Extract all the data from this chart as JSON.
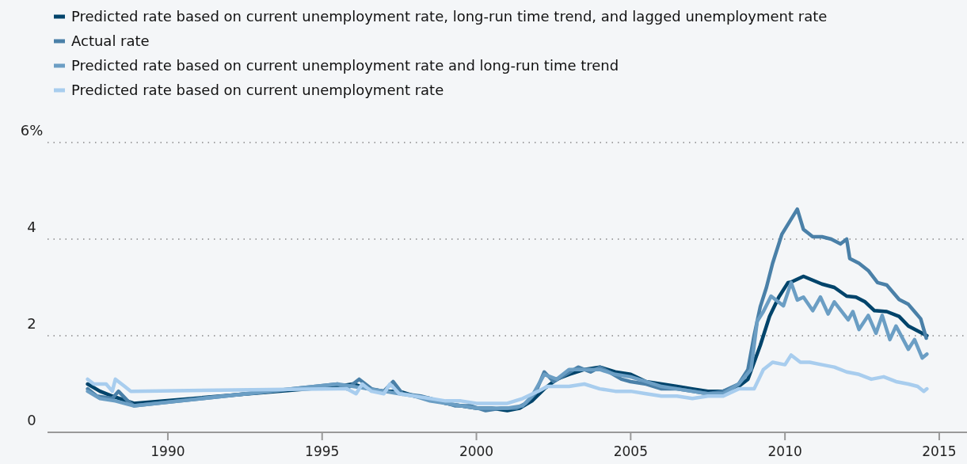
{
  "chart_data": {
    "type": "line",
    "xlim": [
      1986.1,
      2015.9
    ],
    "xticks": [
      1990,
      1995,
      2000,
      2005,
      2010,
      2015
    ],
    "ylim": [
      0,
      6
    ],
    "yticks": [
      {
        "value": 0,
        "label": "0"
      },
      {
        "value": 2,
        "label": "2"
      },
      {
        "value": 4,
        "label": "4"
      },
      {
        "value": 6,
        "label": "6%"
      }
    ],
    "grid": "y",
    "legend": "top left",
    "series": [
      {
        "name": "Predicted rate based on current unemployment rate, long-run time trend, and lagged unemployment rate",
        "color": "#00446b",
        "x": [
          1987.4,
          1987.8,
          1988.2,
          1988.9,
          1995.5,
          1996,
          1996.5,
          1997,
          1997.5,
          1998,
          1998.5,
          1999,
          1999.5,
          2000,
          2000.5,
          2001,
          2001.4,
          2001.8,
          2002.2,
          2002.6,
          2003,
          2003.5,
          2004,
          2004.5,
          2005,
          2005.5,
          2006,
          2006.5,
          2007,
          2007.5,
          2008,
          2008.5,
          2008.8,
          2009.2,
          2009.5,
          2009.8,
          2010.1,
          2010.2,
          2010.6,
          2011.2,
          2011.6,
          2012,
          2012.3,
          2012.6,
          2012.9,
          2013.3,
          2013.7,
          2014,
          2014.6
        ],
        "values": [
          1.0,
          0.85,
          0.75,
          0.6,
          0.95,
          1.0,
          0.9,
          0.85,
          0.85,
          0.75,
          0.7,
          0.6,
          0.55,
          0.5,
          0.5,
          0.45,
          0.5,
          0.65,
          0.9,
          1.1,
          1.2,
          1.3,
          1.35,
          1.25,
          1.2,
          1.05,
          1.0,
          0.95,
          0.9,
          0.85,
          0.85,
          0.95,
          1.1,
          1.8,
          2.4,
          2.8,
          3.1,
          3.11,
          3.23,
          3.07,
          3.0,
          2.82,
          2.8,
          2.7,
          2.52,
          2.5,
          2.4,
          2.2,
          2.0
        ]
      },
      {
        "name": "Actual  rate",
        "color": "#4a80a8",
        "x": [
          1987.4,
          1987.7,
          1988.2,
          1988.4,
          1988.7,
          1988.9,
          1995.5,
          1995.8,
          1996.2,
          1996.6,
          1997,
          1997.3,
          1997.6,
          1998.2,
          1998.8,
          1999.3,
          1999.8,
          2000.3,
          2000.8,
          2001.3,
          2001.6,
          2001.9,
          2002.2,
          2002.5,
          2002.9,
          2003.3,
          2003.7,
          2004,
          2004.3,
          2004.7,
          2005,
          2005.5,
          2006,
          2006.5,
          2007,
          2007.5,
          2008,
          2008.5,
          2008.8,
          2009,
          2009.2,
          2009.4,
          2009.6,
          2009.9,
          2010.4,
          2010.6,
          2010.9,
          2011.2,
          2011.5,
          2011.8,
          2012,
          2012.1,
          2012.4,
          2012.7,
          2013,
          2013.3,
          2013.7,
          2014,
          2014.2,
          2014.4,
          2014.58
        ],
        "values": [
          0.9,
          0.75,
          0.7,
          0.85,
          0.65,
          0.55,
          1.0,
          0.9,
          1.1,
          0.9,
          0.85,
          1.05,
          0.8,
          0.75,
          0.65,
          0.55,
          0.55,
          0.45,
          0.5,
          0.5,
          0.6,
          0.8,
          1.25,
          1.05,
          1.2,
          1.35,
          1.25,
          1.35,
          1.25,
          1.1,
          1.05,
          1.0,
          0.9,
          0.9,
          0.85,
          0.8,
          0.85,
          1.0,
          1.3,
          2.0,
          2.6,
          3.0,
          3.5,
          4.1,
          4.62,
          4.2,
          4.05,
          4.05,
          4.0,
          3.9,
          4.0,
          3.6,
          3.5,
          3.35,
          3.1,
          3.05,
          2.75,
          2.65,
          2.5,
          2.35,
          1.95
        ]
      },
      {
        "name": "Predicted rate based on current unemployment rate and long-run time trend",
        "color": "#6b9ec4",
        "x": [
          1987.4,
          1987.8,
          1988.3,
          1988.9,
          1995.5,
          1996,
          1996.5,
          1997,
          1997.5,
          1998,
          1998.5,
          1999,
          1999.5,
          2000,
          2000.5,
          2001,
          2001.5,
          2001.8,
          2002.2,
          2002.6,
          2003,
          2003.5,
          2004,
          2004.5,
          2005,
          2005.5,
          2006,
          2006.5,
          2007,
          2007.5,
          2008,
          2008.5,
          2008.9,
          2009.1,
          2009.3,
          2009.55,
          2009.95,
          2010.2,
          2010.4,
          2010.6,
          2010.9,
          2011.15,
          2011.4,
          2011.6,
          2012.05,
          2012.2,
          2012.4,
          2012.7,
          2012.95,
          2013.15,
          2013.4,
          2013.6,
          2014,
          2014.2,
          2014.45,
          2014.6
        ],
        "values": [
          0.85,
          0.7,
          0.65,
          0.55,
          1.0,
          0.95,
          0.9,
          0.85,
          0.8,
          0.75,
          0.65,
          0.6,
          0.55,
          0.5,
          0.5,
          0.5,
          0.55,
          0.75,
          1.2,
          1.1,
          1.3,
          1.3,
          1.3,
          1.2,
          1.15,
          1.05,
          0.95,
          0.9,
          0.85,
          0.8,
          0.8,
          1.0,
          1.3,
          2.3,
          2.5,
          2.82,
          2.62,
          3.1,
          2.74,
          2.8,
          2.52,
          2.8,
          2.45,
          2.7,
          2.33,
          2.5,
          2.13,
          2.42,
          2.05,
          2.42,
          1.92,
          2.2,
          1.72,
          1.92,
          1.54,
          1.62
        ]
      },
      {
        "name": "Predicted rate based on current unemployment rate",
        "color": "#a8cdee",
        "x": [
          1987.4,
          1987.6,
          1988,
          1988.2,
          1988.3,
          1988.6,
          1988.8,
          1995.5,
          1995.8,
          1996.1,
          1996.3,
          1996.6,
          1997,
          1997.2,
          1997.5,
          1998,
          1998.5,
          1999,
          1999.5,
          2000,
          2000.5,
          2001,
          2001.5,
          2002,
          2002.3,
          2003,
          2003.5,
          2004,
          2004.5,
          2005,
          2005.5,
          2006,
          2006.5,
          2007,
          2007.5,
          2008,
          2008.5,
          2009,
          2009.3,
          2009.6,
          2010,
          2010.2,
          2010.5,
          2010.8,
          2011.2,
          2011.6,
          2012,
          2012.4,
          2012.8,
          2013.2,
          2013.6,
          2014,
          2014.3,
          2014.5,
          2014.6
        ],
        "values": [
          1.1,
          1.0,
          1.0,
          0.85,
          1.1,
          0.95,
          0.85,
          0.9,
          0.9,
          0.8,
          1.0,
          0.85,
          0.8,
          1.0,
          0.8,
          0.75,
          0.7,
          0.65,
          0.65,
          0.6,
          0.6,
          0.6,
          0.7,
          0.85,
          0.95,
          0.95,
          1.0,
          0.9,
          0.85,
          0.85,
          0.8,
          0.75,
          0.75,
          0.7,
          0.75,
          0.75,
          0.9,
          0.9,
          1.3,
          1.45,
          1.4,
          1.6,
          1.45,
          1.45,
          1.4,
          1.35,
          1.25,
          1.2,
          1.1,
          1.15,
          1.05,
          1.0,
          0.95,
          0.85,
          0.9
        ]
      }
    ]
  }
}
